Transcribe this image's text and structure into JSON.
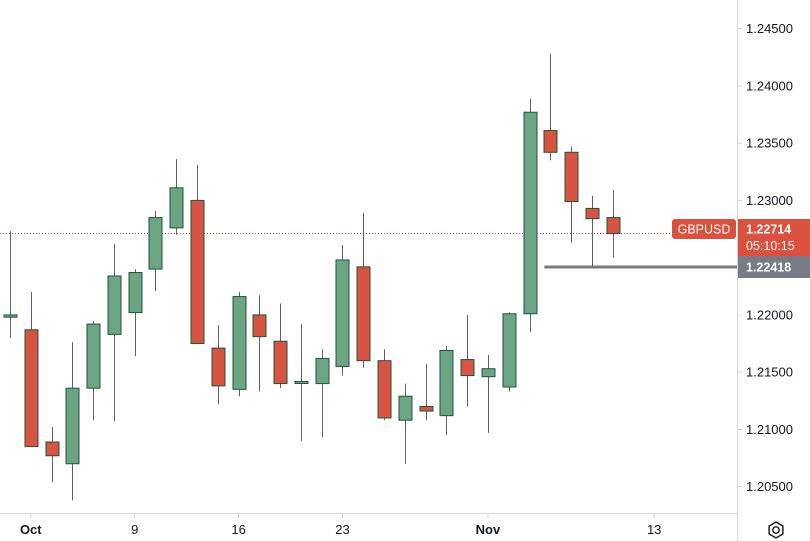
{
  "chart_data": {
    "type": "candlestick",
    "symbol": "GBPUSD",
    "last_price_label": "1.22714",
    "countdown_label": "05:10:15",
    "last_price": 1.22714,
    "level_price_label": "1.22418",
    "level_price": 1.22418,
    "level_start_candle": 26,
    "ylim": [
      1.2027,
      1.2475
    ],
    "yticks": [
      {
        "value": 1.205,
        "label": "1.20500"
      },
      {
        "value": 1.21,
        "label": "1.21000"
      },
      {
        "value": 1.215,
        "label": "1.21500"
      },
      {
        "value": 1.22,
        "label": "1.22000"
      },
      {
        "value": 1.225,
        "label": "1.22500"
      },
      {
        "value": 1.23,
        "label": "1.23000"
      },
      {
        "value": 1.235,
        "label": "1.23500"
      },
      {
        "value": 1.24,
        "label": "1.24000"
      },
      {
        "value": 1.245,
        "label": "1.24500"
      }
    ],
    "xticks": [
      {
        "candle": 1,
        "label": "Oct",
        "bold": true
      },
      {
        "candle": 6,
        "label": "9",
        "bold": false
      },
      {
        "candle": 11,
        "label": "16",
        "bold": false
      },
      {
        "candle": 16,
        "label": "23",
        "bold": false
      },
      {
        "candle": 23,
        "label": "Nov",
        "bold": true
      },
      {
        "candle": 31,
        "label": "13",
        "bold": false
      }
    ],
    "candles": [
      {
        "o": 1.2198,
        "h": 1.2273,
        "l": 1.218,
        "c": 1.22
      },
      {
        "o": 1.2187,
        "h": 1.222,
        "l": 1.2085,
        "c": 1.2085
      },
      {
        "o": 1.2089,
        "h": 1.2102,
        "l": 1.2054,
        "c": 1.2077
      },
      {
        "o": 1.207,
        "h": 1.2176,
        "l": 1.2038,
        "c": 1.2136
      },
      {
        "o": 1.2136,
        "h": 1.2195,
        "l": 1.2108,
        "c": 1.2192
      },
      {
        "o": 1.2183,
        "h": 1.2262,
        "l": 1.2107,
        "c": 1.2234
      },
      {
        "o": 1.2202,
        "h": 1.224,
        "l": 1.2164,
        "c": 1.2237
      },
      {
        "o": 1.224,
        "h": 1.2291,
        "l": 1.2221,
        "c": 1.2285
      },
      {
        "o": 1.2276,
        "h": 1.2336,
        "l": 1.227,
        "c": 1.2311
      },
      {
        "o": 1.23,
        "h": 1.2331,
        "l": 1.2176,
        "c": 1.2175
      },
      {
        "o": 1.2171,
        "h": 1.2191,
        "l": 1.2122,
        "c": 1.2138
      },
      {
        "o": 1.2135,
        "h": 1.222,
        "l": 1.2129,
        "c": 1.2216
      },
      {
        "o": 1.22,
        "h": 1.2217,
        "l": 1.2133,
        "c": 1.2181
      },
      {
        "o": 1.2177,
        "h": 1.221,
        "l": 1.2136,
        "c": 1.214
      },
      {
        "o": 1.2141,
        "h": 1.2192,
        "l": 1.209,
        "c": 1.2141
      },
      {
        "o": 1.214,
        "h": 1.217,
        "l": 1.2093,
        "c": 1.2162
      },
      {
        "o": 1.2155,
        "h": 1.2261,
        "l": 1.2147,
        "c": 1.2248
      },
      {
        "o": 1.2242,
        "h": 1.2289,
        "l": 1.2154,
        "c": 1.216
      },
      {
        "o": 1.216,
        "h": 1.217,
        "l": 1.2108,
        "c": 1.211
      },
      {
        "o": 1.2108,
        "h": 1.214,
        "l": 1.207,
        "c": 1.2129
      },
      {
        "o": 1.212,
        "h": 1.2157,
        "l": 1.2108,
        "c": 1.2116
      },
      {
        "o": 1.2112,
        "h": 1.2173,
        "l": 1.2095,
        "c": 1.2169
      },
      {
        "o": 1.2161,
        "h": 1.22,
        "l": 1.212,
        "c": 1.2147
      },
      {
        "o": 1.2146,
        "h": 1.2165,
        "l": 1.2097,
        "c": 1.2153
      },
      {
        "o": 1.2137,
        "h": 1.2202,
        "l": 1.2133,
        "c": 1.2201
      },
      {
        "o": 1.2201,
        "h": 1.2389,
        "l": 1.2185,
        "c": 1.2377
      },
      {
        "o": 1.2361,
        "h": 1.2428,
        "l": 1.2335,
        "c": 1.2342
      },
      {
        "o": 1.2342,
        "h": 1.2347,
        "l": 1.2263,
        "c": 1.2299
      },
      {
        "o": 1.2293,
        "h": 1.2304,
        "l": 1.2242,
        "c": 1.2284
      },
      {
        "o": 1.2285,
        "h": 1.2309,
        "l": 1.225,
        "c": 1.2271
      }
    ]
  }
}
